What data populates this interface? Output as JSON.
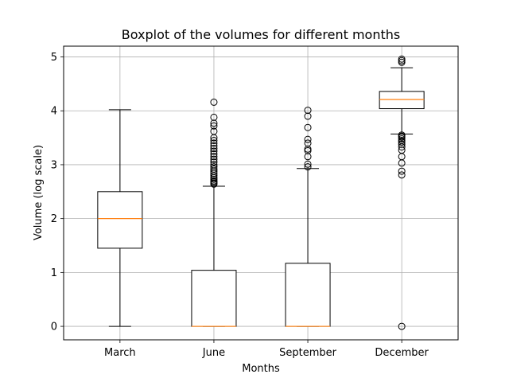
{
  "chart_data": {
    "type": "boxplot",
    "title": "Boxplot of the volumes for different months",
    "xlabel": "Months",
    "ylabel": "Volume (log scale)",
    "categories": [
      "March",
      "June",
      "September",
      "December"
    ],
    "yticks": [
      0,
      1,
      2,
      3,
      4,
      5
    ],
    "ylim": [
      -0.25,
      5.2
    ],
    "grid": true,
    "boxes": [
      {
        "category": "March",
        "whisker_low": 0.0,
        "q1": 1.45,
        "median": 2.0,
        "q3": 2.5,
        "whisker_high": 4.02,
        "outliers": []
      },
      {
        "category": "June",
        "whisker_low": 0.0,
        "q1": 0.0,
        "median": 0.0,
        "q3": 1.04,
        "whisker_high": 2.6,
        "outliers": [
          2.64,
          2.66,
          2.68,
          2.7,
          2.73,
          2.76,
          2.8,
          2.84,
          2.88,
          2.92,
          2.96,
          3.0,
          3.05,
          3.1,
          3.15,
          3.2,
          3.25,
          3.3,
          3.35,
          3.4,
          3.45,
          3.5,
          3.62,
          3.72,
          3.77,
          3.88,
          4.16
        ]
      },
      {
        "category": "September",
        "whisker_low": 0.0,
        "q1": 0.0,
        "median": 0.0,
        "q3": 1.17,
        "whisker_high": 2.93,
        "outliers": [
          2.96,
          3.01,
          3.15,
          3.26,
          3.29,
          3.4,
          3.47,
          3.69,
          3.9,
          4.01
        ]
      },
      {
        "category": "December",
        "whisker_low": 3.57,
        "q1": 4.04,
        "median": 4.21,
        "q3": 4.36,
        "whisker_high": 4.8,
        "outliers": [
          0.0,
          2.81,
          2.88,
          3.03,
          3.15,
          3.27,
          3.33,
          3.38,
          3.42,
          3.45,
          3.48,
          3.51,
          3.53,
          3.55,
          4.9,
          4.93,
          4.96
        ]
      }
    ],
    "colors": {
      "box": "#000000",
      "median": "#ff7f0e",
      "grid": "#b0b0b0",
      "flier": "#000000"
    }
  }
}
